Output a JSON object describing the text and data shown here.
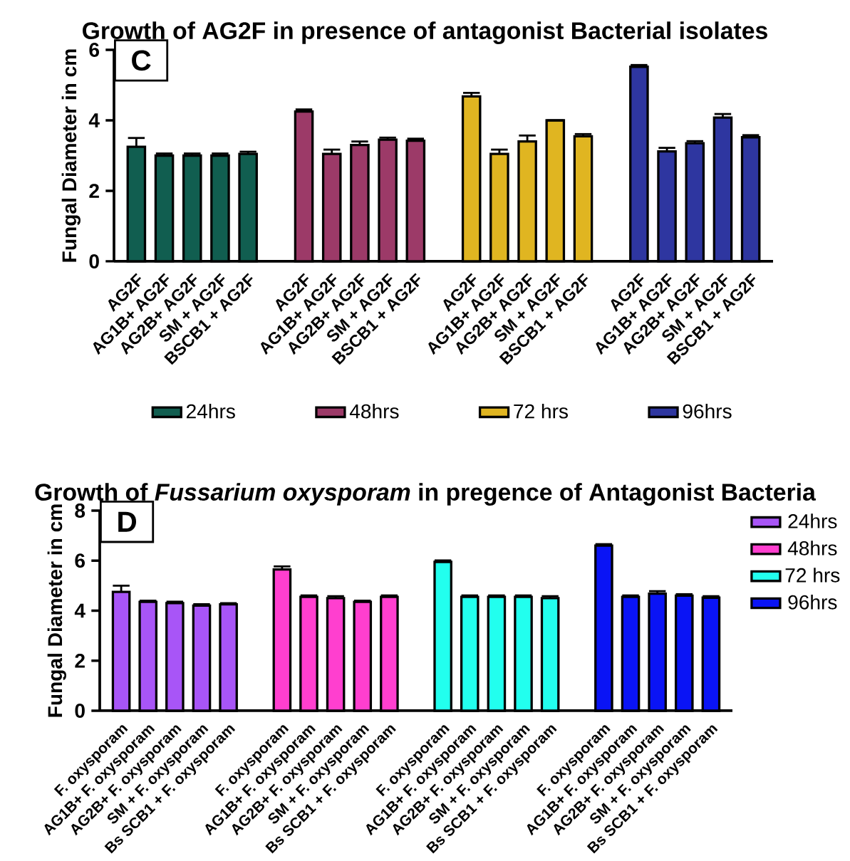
{
  "chart_data": [
    {
      "type": "bar",
      "title": "Growth of AG2F in presence of antagonist Bacterial isolates",
      "ylabel": "Fungal Diameter in cm",
      "annotations": [
        "C"
      ],
      "categories": [
        "AG2F",
        "AG1B+ AG2F",
        "AG2B+ AG2F",
        "SM + AG2F",
        "BSCB1 + AG2F",
        null,
        "AG2F",
        "AG1B+ AG2F",
        "AG2B+ AG2F",
        "SM + AG2F",
        "BSCB1 + AG2F",
        null,
        "AG2F",
        "AG1B+ AG2F",
        "AG2B+ AG2F",
        "SM + AG2F",
        "BSCB1 + AG2F",
        null,
        "AG2F",
        "AG1B+ AG2F",
        "AG2B+ AG2F",
        "SM + AG2F",
        "BSCB1 + AG2F"
      ],
      "series": [
        {
          "name": "24hrs",
          "color": "#115e50",
          "values": [
            3.25,
            3.0,
            3.0,
            3.0,
            3.05,
            null,
            null,
            null,
            null,
            null,
            null,
            null,
            null,
            null,
            null,
            null,
            null,
            null,
            null,
            null,
            null,
            null,
            null
          ],
          "errors": [
            0.25,
            0.06,
            0.06,
            0.06,
            0.06,
            null,
            null,
            null,
            null,
            null,
            null,
            null,
            null,
            null,
            null,
            null,
            null,
            null,
            null,
            null,
            null,
            null,
            null
          ]
        },
        {
          "name": "48hrs",
          "color": "#9c3a68",
          "values": [
            null,
            null,
            null,
            null,
            null,
            null,
            4.25,
            3.05,
            3.3,
            3.45,
            3.42,
            null,
            null,
            null,
            null,
            null,
            null,
            null,
            null,
            null,
            null,
            null,
            null
          ],
          "errors": [
            null,
            null,
            null,
            null,
            null,
            null,
            0.06,
            0.12,
            0.1,
            0.06,
            0.06,
            null,
            null,
            null,
            null,
            null,
            null,
            null,
            null,
            null,
            null,
            null,
            null
          ]
        },
        {
          "name": "72 hrs",
          "color": "#e0b521",
          "values": [
            null,
            null,
            null,
            null,
            null,
            null,
            null,
            null,
            null,
            null,
            null,
            null,
            4.68,
            3.05,
            3.4,
            4.0,
            3.55,
            null,
            null,
            null,
            null,
            null,
            null
          ],
          "errors": [
            null,
            null,
            null,
            null,
            null,
            null,
            null,
            null,
            null,
            null,
            null,
            null,
            0.1,
            0.12,
            0.17,
            null,
            0.06,
            null,
            null,
            null,
            null,
            null,
            null
          ]
        },
        {
          "name": "96hrs",
          "color": "#2e36a0",
          "values": [
            null,
            null,
            null,
            null,
            null,
            null,
            null,
            null,
            null,
            null,
            null,
            null,
            null,
            null,
            null,
            null,
            null,
            null,
            5.52,
            3.12,
            3.35,
            4.08,
            3.52
          ],
          "errors": [
            null,
            null,
            null,
            null,
            null,
            null,
            null,
            null,
            null,
            null,
            null,
            null,
            null,
            null,
            null,
            null,
            null,
            null,
            0.05,
            0.1,
            0.06,
            0.1,
            0.06
          ]
        }
      ],
      "ylim": [
        0,
        6
      ],
      "yticks": [
        0,
        2,
        4,
        6
      ],
      "legend": "bottom"
    },
    {
      "type": "bar",
      "title": "Growth of *Fussarium oxysporam* in pregence of Antagonist Bacteria",
      "ylabel": "Fungal Diameter in cm",
      "annotations": [
        "D"
      ],
      "categories": [
        "F. oxysporam",
        "AG1B+ F. oxysporam",
        "AG2B+ F. oxysporam",
        "SM + F. oxysporam",
        "Bs SCB1 + F. oxysporam",
        null,
        "F. oxysporam",
        "AG1B+ F. oxysporam",
        "AG2B+ F. oxysporam",
        "SM + F. oxysporam",
        "Bs SCB1 + F. oxysporam",
        null,
        "F. oxysporam",
        "AG1B+ F. oxysporam",
        "AG2B+ F. oxysporam",
        "SM + F. oxysporam",
        "Bs SCB1 + F. oxysporam",
        null,
        "F. oxysporam",
        "AG1B+ F. oxysporam",
        "AG2B+ F. oxysporam",
        "SM + F. oxysporam",
        "Bs SCB1 + F. oxysporam"
      ],
      "series": [
        {
          "name": "24hrs",
          "color": "#a855f7",
          "values": [
            4.75,
            4.35,
            4.3,
            4.2,
            4.25,
            null,
            null,
            null,
            null,
            null,
            null,
            null,
            null,
            null,
            null,
            null,
            null,
            null,
            null,
            null,
            null,
            null,
            null
          ],
          "errors": [
            0.25,
            0.05,
            0.06,
            0.06,
            0.05,
            null,
            null,
            null,
            null,
            null,
            null,
            null,
            null,
            null,
            null,
            null,
            null,
            null,
            null,
            null,
            null,
            null,
            null
          ]
        },
        {
          "name": "48hrs",
          "color": "#ff3fcf",
          "values": [
            null,
            null,
            null,
            null,
            null,
            null,
            5.65,
            4.55,
            4.5,
            4.35,
            4.55,
            null,
            null,
            null,
            null,
            null,
            null,
            null,
            null,
            null,
            null,
            null,
            null
          ],
          "errors": [
            null,
            null,
            null,
            null,
            null,
            null,
            0.12,
            0.06,
            0.08,
            0.05,
            0.06,
            null,
            null,
            null,
            null,
            null,
            null,
            null,
            null,
            null,
            null,
            null,
            null
          ]
        },
        {
          "name": "72 hrs",
          "color": "#22ffee",
          "values": [
            null,
            null,
            null,
            null,
            null,
            null,
            null,
            null,
            null,
            null,
            null,
            null,
            5.95,
            4.55,
            4.55,
            4.55,
            4.5,
            null,
            null,
            null,
            null,
            null,
            null
          ],
          "errors": [
            null,
            null,
            null,
            null,
            null,
            null,
            null,
            null,
            null,
            null,
            null,
            null,
            0.06,
            0.06,
            0.06,
            0.06,
            0.08,
            null,
            null,
            null,
            null,
            null,
            null
          ]
        },
        {
          "name": "96hrs",
          "color": "#0a14f5",
          "values": [
            null,
            null,
            null,
            null,
            null,
            null,
            null,
            null,
            null,
            null,
            null,
            null,
            null,
            null,
            null,
            null,
            null,
            null,
            6.6,
            4.55,
            4.68,
            4.6,
            4.52
          ],
          "errors": [
            null,
            null,
            null,
            null,
            null,
            null,
            null,
            null,
            null,
            null,
            null,
            null,
            null,
            null,
            null,
            null,
            null,
            null,
            0.06,
            0.06,
            0.1,
            0.06,
            0.06
          ]
        }
      ],
      "ylim": [
        0,
        8
      ],
      "yticks": [
        0,
        2,
        4,
        6,
        8
      ],
      "legend": "right"
    }
  ]
}
